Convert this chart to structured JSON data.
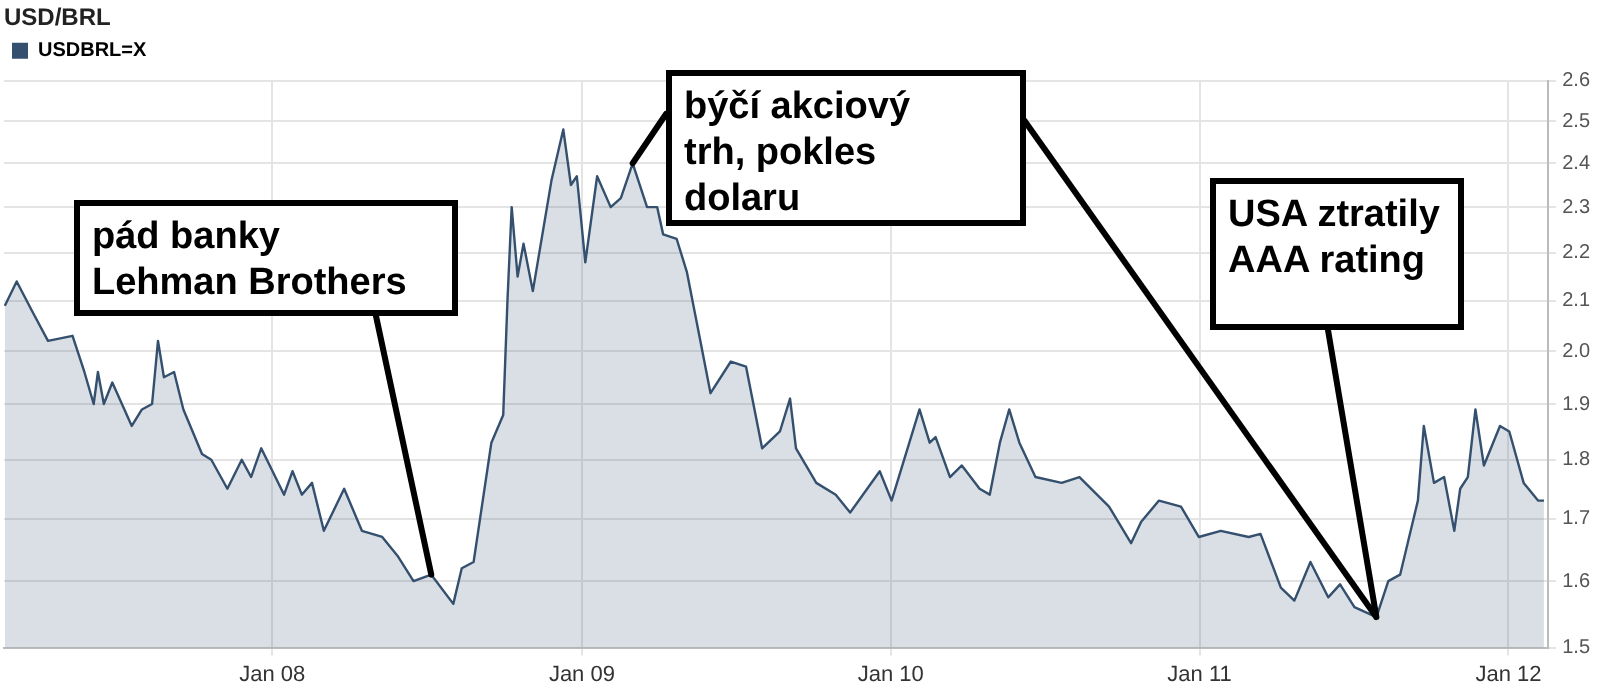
{
  "chart_data": {
    "type": "area",
    "title": "USD/BRL",
    "x": [
      "2007-02-19",
      "2007-03-05",
      "2007-03-23",
      "2007-04-11",
      "2007-05-10",
      "2007-05-24",
      "2007-06-04",
      "2007-06-09",
      "2007-06-16",
      "2007-06-26",
      "2007-07-19",
      "2007-07-31",
      "2007-08-12",
      "2007-08-19",
      "2007-08-26",
      "2007-09-07",
      "2007-09-18",
      "2007-10-10",
      "2007-10-21",
      "2007-11-09",
      "2007-11-26",
      "2007-12-07",
      "2007-12-19",
      "2008-01-15",
      "2008-01-25",
      "2008-02-05",
      "2008-02-17",
      "2008-03-02",
      "2008-03-26",
      "2008-04-16",
      "2008-05-10",
      "2008-05-28",
      "2008-06-16",
      "2008-07-07",
      "2008-08-02",
      "2008-08-12",
      "2008-08-26",
      "2008-09-16",
      "2008-09-30",
      "2008-10-05",
      "2008-10-10",
      "2008-10-17",
      "2008-10-24",
      "2008-11-04",
      "2008-11-26",
      "2008-12-10",
      "2008-12-19",
      "2008-12-26",
      "2009-01-05",
      "2009-01-19",
      "2009-02-04",
      "2009-02-16",
      "2009-03-02",
      "2009-03-19",
      "2009-03-31",
      "2009-04-07",
      "2009-04-23",
      "2009-05-05",
      "2009-05-21",
      "2009-06-02",
      "2009-06-26",
      "2009-07-14",
      "2009-08-02",
      "2009-08-23",
      "2009-09-04",
      "2009-09-11",
      "2009-10-05",
      "2009-10-28",
      "2009-11-14",
      "2009-12-19",
      "2010-01-02",
      "2010-02-04",
      "2010-02-16",
      "2010-02-23",
      "2010-03-12",
      "2010-03-26",
      "2010-04-16",
      "2010-04-28",
      "2010-05-10",
      "2010-05-21",
      "2010-06-02",
      "2010-06-21",
      "2010-07-22",
      "2010-08-12",
      "2010-09-16",
      "2010-10-12",
      "2010-10-24",
      "2010-11-14",
      "2010-12-10",
      "2010-12-31",
      "2011-01-26",
      "2011-02-28",
      "2011-03-14",
      "2011-04-07",
      "2011-04-23",
      "2011-05-12",
      "2011-06-02",
      "2011-06-16",
      "2011-07-03",
      "2011-07-29",
      "2011-08-12",
      "2011-08-26",
      "2011-09-16",
      "2011-09-23",
      "2011-10-05",
      "2011-10-17",
      "2011-10-29",
      "2011-11-05",
      "2011-11-14",
      "2011-11-23",
      "2011-12-03",
      "2011-12-22",
      "2012-01-02",
      "2012-01-19",
      "2012-02-05",
      "2012-02-12"
    ],
    "series": [
      {
        "name": "USDBRL=X",
        "color": "#34506e",
        "values": [
          2.09,
          2.14,
          2.08,
          2.02,
          2.03,
          1.96,
          1.9,
          1.96,
          1.9,
          1.94,
          1.86,
          1.89,
          1.9,
          2.02,
          1.95,
          1.96,
          1.89,
          1.81,
          1.8,
          1.75,
          1.8,
          1.77,
          1.82,
          1.74,
          1.78,
          1.74,
          1.76,
          1.68,
          1.75,
          1.68,
          1.67,
          1.64,
          1.6,
          1.61,
          1.565,
          1.62,
          1.63,
          1.83,
          1.88,
          2.1,
          2.3,
          2.15,
          2.22,
          2.12,
          2.36,
          2.48,
          2.35,
          2.37,
          2.18,
          2.37,
          2.3,
          2.32,
          2.4,
          2.3,
          2.3,
          2.24,
          2.23,
          2.16,
          2.02,
          1.92,
          1.98,
          1.97,
          1.82,
          1.85,
          1.91,
          1.82,
          1.76,
          1.74,
          1.71,
          1.78,
          1.73,
          1.89,
          1.83,
          1.84,
          1.77,
          1.79,
          1.75,
          1.74,
          1.83,
          1.89,
          1.83,
          1.77,
          1.76,
          1.77,
          1.72,
          1.66,
          1.695,
          1.73,
          1.72,
          1.67,
          1.68,
          1.67,
          1.675,
          1.59,
          1.57,
          1.63,
          1.575,
          1.595,
          1.56,
          1.545,
          1.6,
          1.61,
          1.73,
          1.86,
          1.76,
          1.77,
          1.68,
          1.75,
          1.77,
          1.89,
          1.79,
          1.86,
          1.85,
          1.76,
          1.73,
          1.73
        ]
      }
    ],
    "xlim": [
      "2007-02-18",
      "2012-02-17"
    ],
    "xticks": [
      {
        "value": "2008-01-01",
        "label": "Jan 08"
      },
      {
        "value": "2009-01-01",
        "label": "Jan 09"
      },
      {
        "value": "2010-01-01",
        "label": "Jan 10"
      },
      {
        "value": "2011-01-01",
        "label": "Jan 11"
      },
      {
        "value": "2012-01-01",
        "label": "Jan 12"
      }
    ],
    "ylim": [
      1.5,
      2.6
    ],
    "log": true,
    "yticks": [
      1.5,
      1.6,
      1.7,
      1.8,
      1.9,
      {
        "value": 2,
        "label": "2.0"
      },
      2.1,
      2.2,
      2.3,
      2.4,
      2.5,
      2.6
    ],
    "grid": true,
    "legend": "top left",
    "marker": "none",
    "annotations": [
      {
        "text": "pád banky\nLehman Brothers",
        "x": "2008-07-07",
        "y": 1.61
      },
      {
        "text": "býčí akciový\ntrh, pokles\ndolaru",
        "x": "2009-03-02",
        "y": 2.4
      },
      {
        "text": "USA ztratily\nAAA rating",
        "x": "2011-07-29",
        "y": 1.545
      }
    ]
  }
}
